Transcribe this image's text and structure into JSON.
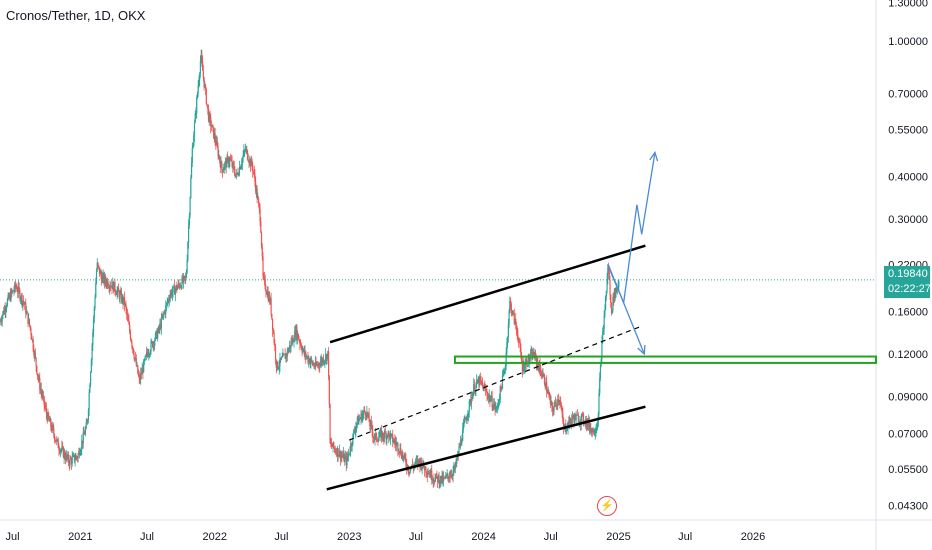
{
  "chart_data": {
    "type": "candlestick",
    "title": "Cronos/Tether, 1D, OKX",
    "y_scale": "log",
    "ylim": [
      0.039,
      1.32
    ],
    "xlim": [
      "2020-05-28",
      "2026-12-01"
    ],
    "y_ticks": [
      "1.30000",
      "1.00000",
      "0.70000",
      "0.55000",
      "0.40000",
      "0.30000",
      "0.22000",
      "0.16000",
      "0.12000",
      "0.09000",
      "0.07000",
      "0.05500",
      "0.04300"
    ],
    "x_ticks": [
      {
        "label": "Jul",
        "date": "2020-07-01"
      },
      {
        "label": "2021",
        "date": "2021-01-01"
      },
      {
        "label": "Jul",
        "date": "2021-07-01"
      },
      {
        "label": "2022",
        "date": "2022-01-01"
      },
      {
        "label": "Jul",
        "date": "2022-07-01"
      },
      {
        "label": "2023",
        "date": "2023-01-01"
      },
      {
        "label": "Jul",
        "date": "2023-07-01"
      },
      {
        "label": "2024",
        "date": "2024-01-01"
      },
      {
        "label": "Jul",
        "date": "2024-07-01"
      },
      {
        "label": "2025",
        "date": "2025-01-01"
      },
      {
        "label": "Jul",
        "date": "2025-07-01"
      },
      {
        "label": "2026",
        "date": "2026-01-01"
      }
    ],
    "price_path": [
      [
        "2020-05-28",
        0.15
      ],
      [
        "2020-06-15",
        0.17
      ],
      [
        "2020-07-10",
        0.19
      ],
      [
        "2020-08-01",
        0.17
      ],
      [
        "2020-08-20",
        0.14
      ],
      [
        "2020-09-10",
        0.1
      ],
      [
        "2020-10-01",
        0.08
      ],
      [
        "2020-11-01",
        0.065
      ],
      [
        "2020-12-01",
        0.058
      ],
      [
        "2020-12-25",
        0.06
      ],
      [
        "2021-01-20",
        0.075
      ],
      [
        "2021-02-15",
        0.22
      ],
      [
        "2021-03-01",
        0.2
      ],
      [
        "2021-04-01",
        0.19
      ],
      [
        "2021-05-01",
        0.17
      ],
      [
        "2021-05-15",
        0.14
      ],
      [
        "2021-06-10",
        0.1
      ],
      [
        "2021-07-01",
        0.12
      ],
      [
        "2021-08-01",
        0.14
      ],
      [
        "2021-09-01",
        0.18
      ],
      [
        "2021-10-15",
        0.2
      ],
      [
        "2021-11-01",
        0.48
      ],
      [
        "2021-11-24",
        0.9
      ],
      [
        "2021-12-15",
        0.6
      ],
      [
        "2022-01-01",
        0.52
      ],
      [
        "2022-01-20",
        0.42
      ],
      [
        "2022-02-10",
        0.45
      ],
      [
        "2022-03-01",
        0.4
      ],
      [
        "2022-03-25",
        0.48
      ],
      [
        "2022-04-15",
        0.42
      ],
      [
        "2022-05-05",
        0.3
      ],
      [
        "2022-05-12",
        0.2
      ],
      [
        "2022-06-01",
        0.17
      ],
      [
        "2022-06-18",
        0.11
      ],
      [
        "2022-07-15",
        0.12
      ],
      [
        "2022-08-10",
        0.14
      ],
      [
        "2022-09-01",
        0.12
      ],
      [
        "2022-10-01",
        0.11
      ],
      [
        "2022-11-05",
        0.12
      ],
      [
        "2022-11-10",
        0.065
      ],
      [
        "2022-12-01",
        0.062
      ],
      [
        "2022-12-25",
        0.058
      ],
      [
        "2023-01-20",
        0.075
      ],
      [
        "2023-02-15",
        0.082
      ],
      [
        "2023-03-10",
        0.068
      ],
      [
        "2023-04-15",
        0.07
      ],
      [
        "2023-05-15",
        0.064
      ],
      [
        "2023-06-12",
        0.055
      ],
      [
        "2023-07-10",
        0.058
      ],
      [
        "2023-08-18",
        0.052
      ],
      [
        "2023-09-15",
        0.051
      ],
      [
        "2023-10-15",
        0.055
      ],
      [
        "2023-11-10",
        0.075
      ],
      [
        "2023-12-05",
        0.095
      ],
      [
        "2023-12-20",
        0.1
      ],
      [
        "2024-01-10",
        0.092
      ],
      [
        "2024-02-05",
        0.082
      ],
      [
        "2024-02-28",
        0.11
      ],
      [
        "2024-03-12",
        0.17
      ],
      [
        "2024-04-01",
        0.14
      ],
      [
        "2024-04-15",
        0.11
      ],
      [
        "2024-05-15",
        0.12
      ],
      [
        "2024-06-15",
        0.1
      ],
      [
        "2024-07-05",
        0.082
      ],
      [
        "2024-07-25",
        0.09
      ],
      [
        "2024-08-05",
        0.072
      ],
      [
        "2024-09-01",
        0.078
      ],
      [
        "2024-10-01",
        0.077
      ],
      [
        "2024-10-25",
        0.071
      ],
      [
        "2024-11-05",
        0.075
      ],
      [
        "2024-11-15",
        0.12
      ],
      [
        "2024-11-28",
        0.18
      ],
      [
        "2024-12-04",
        0.22
      ],
      [
        "2024-12-12",
        0.16
      ],
      [
        "2024-12-20",
        0.18
      ],
      [
        "2024-12-30",
        0.19
      ],
      [
        "2025-01-03",
        0.1984
      ]
    ],
    "last_price": "0.19840",
    "countdown": "02:22:27",
    "last_price_line": 0.1984,
    "channel": {
      "upper": [
        [
          "2022-11-10",
          0.13
        ],
        [
          "2025-03-15",
          0.25
        ]
      ],
      "lower": [
        [
          "2022-11-01",
          0.048
        ],
        [
          "2025-03-15",
          0.084
        ]
      ],
      "middle": [
        [
          "2023-01-01",
          0.067
        ],
        [
          "2025-03-05",
          0.145
        ]
      ]
    },
    "support_zone": {
      "from": "2023-10-15",
      "to": "2026-12-01",
      "low": 0.113,
      "high": 0.118
    },
    "projection_up": [
      [
        "2024-12-02",
        0.22
      ],
      [
        "2025-01-15",
        0.17
      ],
      [
        "2025-02-20",
        0.33
      ],
      [
        "2025-03-05",
        0.27
      ],
      [
        "2025-04-10",
        0.47
      ]
    ],
    "projection_down": [
      [
        "2024-12-04",
        0.22
      ],
      [
        "2025-03-12",
        0.12
      ]
    ],
    "colors": {
      "up": "#26a69a",
      "down": "#ef5350",
      "channel": "#000000",
      "zone": "#22a51c",
      "projection": "#4a8ad6",
      "price_line": "#26a69a",
      "axis_text": "#131722",
      "event": "#e3485a"
    },
    "event_marker": "lightning-icon"
  }
}
